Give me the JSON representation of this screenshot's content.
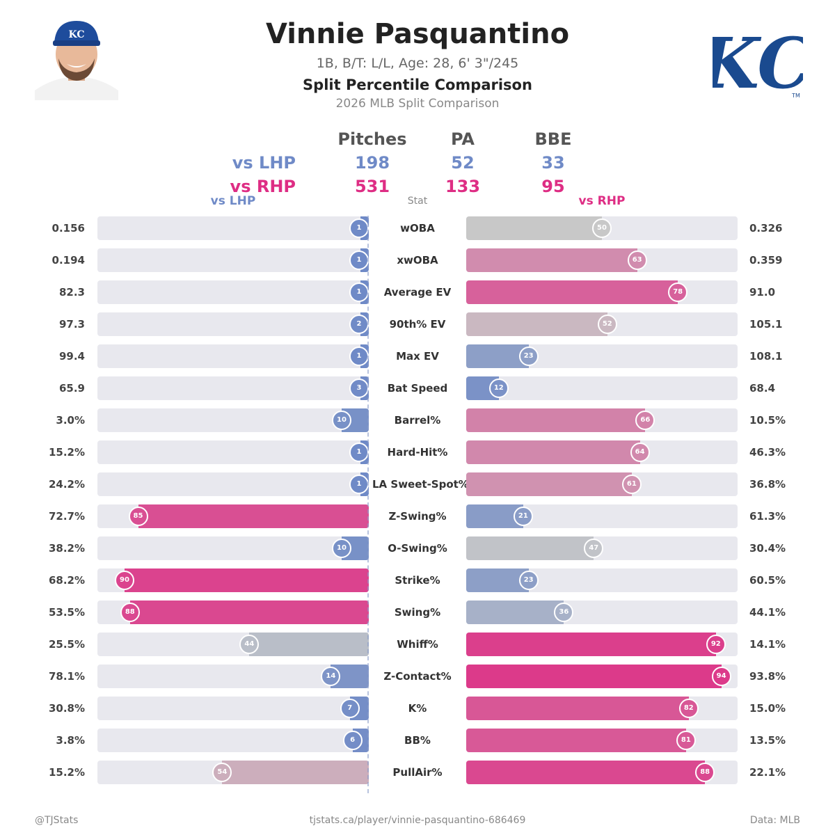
{
  "player": {
    "name": "Vinnie Pasquantino",
    "bio": "1B, B/T: L/L, Age: 28, 6' 3\"/245",
    "team_logo_text": "KC",
    "team_logo_tm": "TM"
  },
  "title": "Split Percentile Comparison",
  "subtitle": "2026 MLB Split Comparison",
  "counts": {
    "headers": [
      "Pitches",
      "PA",
      "BBE"
    ],
    "lhp_label": "vs LHP",
    "rhp_label": "vs RHP",
    "lhp_values": [
      "198",
      "52",
      "33"
    ],
    "rhp_values": [
      "531",
      "133",
      "95"
    ]
  },
  "columns": {
    "left": "vs LHP",
    "middle": "Stat",
    "right": "vs RHP"
  },
  "chart_data": {
    "type": "bar",
    "orientation": "horizontal-diverging",
    "value_range": [
      0,
      100
    ],
    "series_names": [
      "vs LHP",
      "vs RHP"
    ],
    "colors": {
      "high": "#de2d84",
      "mid": "#c8c8c8",
      "low": "#6f8ac7",
      "track": "#e8e8ee"
    },
    "rows": [
      {
        "stat": "wOBA",
        "lhp_value": "0.156",
        "lhp_pct": 1,
        "rhp_value": "0.326",
        "rhp_pct": 50
      },
      {
        "stat": "xwOBA",
        "lhp_value": "0.194",
        "lhp_pct": 1,
        "rhp_value": "0.359",
        "rhp_pct": 63
      },
      {
        "stat": "Average EV",
        "lhp_value": "82.3",
        "lhp_pct": 1,
        "rhp_value": "91.0",
        "rhp_pct": 78
      },
      {
        "stat": "90th% EV",
        "lhp_value": "97.3",
        "lhp_pct": 2,
        "rhp_value": "105.1",
        "rhp_pct": 52
      },
      {
        "stat": "Max EV",
        "lhp_value": "99.4",
        "lhp_pct": 1,
        "rhp_value": "108.1",
        "rhp_pct": 23
      },
      {
        "stat": "Bat Speed",
        "lhp_value": "65.9",
        "lhp_pct": 3,
        "rhp_value": "68.4",
        "rhp_pct": 12
      },
      {
        "stat": "Barrel%",
        "lhp_value": "3.0%",
        "lhp_pct": 10,
        "rhp_value": "10.5%",
        "rhp_pct": 66
      },
      {
        "stat": "Hard-Hit%",
        "lhp_value": "15.2%",
        "lhp_pct": 1,
        "rhp_value": "46.3%",
        "rhp_pct": 64
      },
      {
        "stat": "LA Sweet-Spot%",
        "lhp_value": "24.2%",
        "lhp_pct": 1,
        "rhp_value": "36.8%",
        "rhp_pct": 61
      },
      {
        "stat": "Z-Swing%",
        "lhp_value": "72.7%",
        "lhp_pct": 85,
        "rhp_value": "61.3%",
        "rhp_pct": 21
      },
      {
        "stat": "O-Swing%",
        "lhp_value": "38.2%",
        "lhp_pct": 10,
        "rhp_value": "30.4%",
        "rhp_pct": 47
      },
      {
        "stat": "Strike%",
        "lhp_value": "68.2%",
        "lhp_pct": 90,
        "rhp_value": "60.5%",
        "rhp_pct": 23
      },
      {
        "stat": "Swing%",
        "lhp_value": "53.5%",
        "lhp_pct": 88,
        "rhp_value": "44.1%",
        "rhp_pct": 36
      },
      {
        "stat": "Whiff%",
        "lhp_value": "25.5%",
        "lhp_pct": 44,
        "rhp_value": "14.1%",
        "rhp_pct": 92
      },
      {
        "stat": "Z-Contact%",
        "lhp_value": "78.1%",
        "lhp_pct": 14,
        "rhp_value": "93.8%",
        "rhp_pct": 94
      },
      {
        "stat": "K%",
        "lhp_value": "30.8%",
        "lhp_pct": 7,
        "rhp_value": "15.0%",
        "rhp_pct": 82
      },
      {
        "stat": "BB%",
        "lhp_value": "3.8%",
        "lhp_pct": 6,
        "rhp_value": "13.5%",
        "rhp_pct": 81
      },
      {
        "stat": "PullAir%",
        "lhp_value": "15.2%",
        "lhp_pct": 54,
        "rhp_value": "22.1%",
        "rhp_pct": 88
      }
    ]
  },
  "footer": {
    "left": "@TJStats",
    "center": "tjstats.ca/player/vinnie-pasquantino-686469",
    "right": "Data: MLB"
  }
}
